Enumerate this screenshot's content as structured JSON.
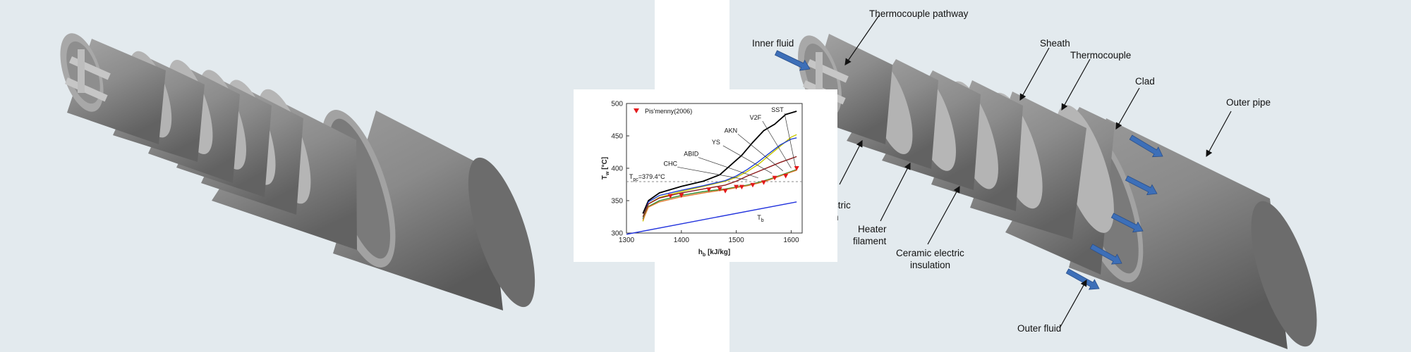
{
  "annotations": {
    "thermocouple_pathway": "Thermocouple pathway",
    "inner_fluid": "Inner fluid",
    "sheath": "Sheath",
    "thermocouple": "Thermocouple",
    "clad": "Clad",
    "outer_pipe": "Outer pipe",
    "electric_partial_1": "ctric",
    "electric_partial_2": "n",
    "heater_filament_1": "Heater",
    "heater_filament_2": "filament",
    "ceramic_1": "Ceramic electric",
    "ceramic_2": "insulation",
    "outer_fluid": "Outer fluid"
  },
  "colors": {
    "background": "#e3eaee",
    "divider": "#ffffff",
    "flow_arrow": "#3d6fb8"
  },
  "chart_data": {
    "type": "line",
    "xlabel_main": "h",
    "xlabel_sub": "b",
    "xlabel_unit": " [kJ/kg]",
    "ylabel_main": "T",
    "ylabel_sub": "w",
    "ylabel_unit": " [°C]",
    "xlim": [
      1300,
      1620
    ],
    "ylim": [
      300,
      500
    ],
    "xticks": [
      1300,
      1400,
      1500,
      1600
    ],
    "yticks": [
      300,
      350,
      400,
      450,
      500
    ],
    "tpc_label_main": "T",
    "tpc_label_sub": "pc",
    "tpc_label_value": "=379.4°C",
    "tpc_value": 379.4,
    "tb_label_main": "T",
    "tb_label_sub": "b",
    "legend": [
      {
        "name": "Pis'menny(2006)",
        "marker": "triangle-down",
        "color": "#e31a1c"
      }
    ],
    "series": [
      {
        "name": "SST",
        "color": "#000000",
        "x": [
          1330,
          1340,
          1360,
          1400,
          1440,
          1470,
          1490,
          1510,
          1530,
          1550,
          1570,
          1590,
          1610
        ],
        "y": [
          330,
          350,
          362,
          372,
          380,
          390,
          405,
          420,
          440,
          458,
          468,
          483,
          488
        ]
      },
      {
        "name": "V2F",
        "color": "#c8c800",
        "x": [
          1330,
          1340,
          1360,
          1400,
          1440,
          1480,
          1500,
          1520,
          1540,
          1560,
          1580,
          1600,
          1610
        ],
        "y": [
          318,
          345,
          355,
          364,
          372,
          380,
          386,
          395,
          406,
          420,
          434,
          448,
          452
        ]
      },
      {
        "name": "AKN",
        "color": "#1f3fd0",
        "x": [
          1330,
          1340,
          1360,
          1400,
          1440,
          1480,
          1500,
          1520,
          1540,
          1560,
          1580,
          1600,
          1610
        ],
        "y": [
          322,
          348,
          358,
          366,
          373,
          381,
          388,
          398,
          410,
          423,
          436,
          445,
          447
        ]
      },
      {
        "name": "YS",
        "color": "#8b1a1a",
        "x": [
          1330,
          1340,
          1360,
          1400,
          1440,
          1480,
          1500,
          1520,
          1540,
          1560,
          1580,
          1600,
          1610
        ],
        "y": [
          325,
          345,
          354,
          362,
          368,
          374,
          380,
          388,
          395,
          402,
          409,
          415,
          418
        ]
      },
      {
        "name": "ABID",
        "color": "#2e8b2e",
        "x": [
          1330,
          1340,
          1360,
          1400,
          1440,
          1480,
          1500,
          1520,
          1540,
          1560,
          1580,
          1600,
          1610
        ],
        "y": [
          322,
          341,
          350,
          358,
          364,
          368,
          371,
          374,
          378,
          383,
          389,
          395,
          398
        ]
      },
      {
        "name": "CHC",
        "color": "#e07a30",
        "x": [
          1330,
          1340,
          1360,
          1400,
          1440,
          1480,
          1500,
          1520,
          1540,
          1560,
          1580,
          1600,
          1610
        ],
        "y": [
          320,
          340,
          348,
          356,
          362,
          367,
          370,
          373,
          377,
          382,
          388,
          394,
          397
        ]
      },
      {
        "name": "Tb",
        "color": "#2233dd",
        "x": [
          1300,
          1610
        ],
        "y": [
          298,
          348
        ]
      }
    ],
    "experimental": {
      "name": "Pis'menny(2006)",
      "x": [
        1380,
        1400,
        1450,
        1470,
        1480,
        1500,
        1510,
        1530,
        1550,
        1570,
        1590,
        1610
      ],
      "y": [
        357,
        358,
        367,
        368,
        365,
        371,
        371,
        374,
        378,
        385,
        388,
        400
      ]
    },
    "curve_labels": [
      {
        "text": "SST",
        "at": [
          1575,
          487
        ],
        "to": [
          1608,
          402
        ]
      },
      {
        "text": "V2F",
        "at": [
          1535,
          475
        ],
        "to": [
          1600,
          400
        ]
      },
      {
        "text": "AKN",
        "at": [
          1490,
          455
        ],
        "to": [
          1585,
          396
        ]
      },
      {
        "text": "YS",
        "at": [
          1463,
          437
        ],
        "to": [
          1565,
          392
        ]
      },
      {
        "text": "ABID",
        "at": [
          1418,
          419
        ],
        "to": [
          1540,
          385
        ]
      },
      {
        "text": "CHC",
        "at": [
          1380,
          404
        ],
        "to": [
          1520,
          382
        ]
      }
    ]
  }
}
